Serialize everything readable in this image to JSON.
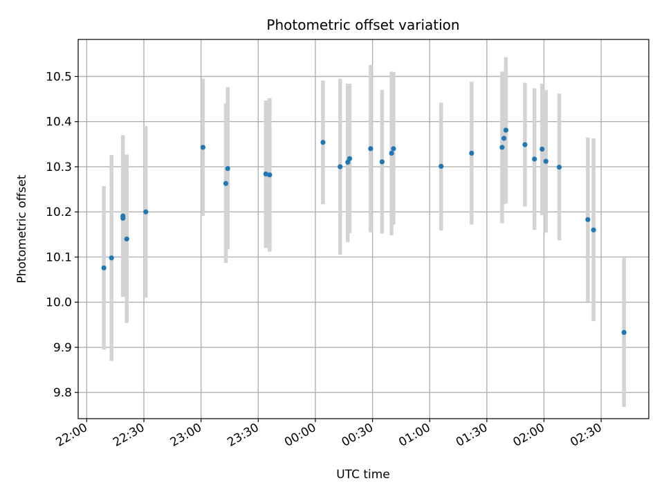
{
  "chart_data": {
    "type": "scatter",
    "title": "Photometric offset variation",
    "xlabel": "UTC time",
    "ylabel": "Photometric offset",
    "x_ticks": [
      "22:00",
      "22:30",
      "23:00",
      "23:30",
      "00:00",
      "00:30",
      "01:00",
      "01:30",
      "02:00",
      "02:30"
    ],
    "x_tick_minutes": [
      0,
      30,
      60,
      90,
      120,
      150,
      180,
      210,
      240,
      270
    ],
    "x_axis_unit": "minutes after 22:00 UTC",
    "xlim": [
      -4.5,
      295
    ],
    "y_ticks": [
      "9.8",
      "9.9",
      "10.0",
      "10.1",
      "10.2",
      "10.3",
      "10.4",
      "10.5"
    ],
    "ylim": [
      9.742,
      10.582
    ],
    "grid": true,
    "marker_color": "#1f77b4",
    "errorbar_color": "#d3d3d3",
    "points": [
      {
        "t": "22:09",
        "y": 10.076,
        "ylo": 9.895,
        "yhi": 10.257
      },
      {
        "t": "22:13",
        "y": 10.098,
        "ylo": 9.87,
        "yhi": 10.326
      },
      {
        "t": "22:19",
        "y": 10.191,
        "ylo": 10.012,
        "yhi": 10.37
      },
      {
        "t": "22:19",
        "y": 10.186,
        "ylo": 10.012,
        "yhi": 10.362
      },
      {
        "t": "22:21",
        "y": 10.14,
        "ylo": 9.954,
        "yhi": 10.327
      },
      {
        "t": "22:31",
        "y": 10.2,
        "ylo": 10.01,
        "yhi": 10.39
      },
      {
        "t": "23:01",
        "y": 10.343,
        "ylo": 10.191,
        "yhi": 10.495
      },
      {
        "t": "23:13",
        "y": 10.263,
        "ylo": 10.087,
        "yhi": 10.44
      },
      {
        "t": "23:14",
        "y": 10.296,
        "ylo": 10.117,
        "yhi": 10.476
      },
      {
        "t": "23:34",
        "y": 10.284,
        "ylo": 10.12,
        "yhi": 10.447
      },
      {
        "t": "23:36",
        "y": 10.282,
        "ylo": 10.112,
        "yhi": 10.452
      },
      {
        "t": "00:04",
        "y": 10.354,
        "ylo": 10.217,
        "yhi": 10.491
      },
      {
        "t": "00:13",
        "y": 10.3,
        "ylo": 10.105,
        "yhi": 10.495
      },
      {
        "t": "00:17",
        "y": 10.31,
        "ylo": 10.133,
        "yhi": 10.484
      },
      {
        "t": "00:18",
        "y": 10.318,
        "ylo": 10.153,
        "yhi": 10.484
      },
      {
        "t": "00:29",
        "y": 10.34,
        "ylo": 10.155,
        "yhi": 10.525
      },
      {
        "t": "00:35",
        "y": 10.311,
        "ylo": 10.152,
        "yhi": 10.47
      },
      {
        "t": "00:40",
        "y": 10.33,
        "ylo": 10.148,
        "yhi": 10.511
      },
      {
        "t": "00:41",
        "y": 10.34,
        "ylo": 10.172,
        "yhi": 10.51
      },
      {
        "t": "01:06",
        "y": 10.301,
        "ylo": 10.159,
        "yhi": 10.442
      },
      {
        "t": "01:22",
        "y": 10.33,
        "ylo": 10.172,
        "yhi": 10.488
      },
      {
        "t": "01:38",
        "y": 10.343,
        "ylo": 10.175,
        "yhi": 10.511
      },
      {
        "t": "01:39",
        "y": 10.363,
        "ylo": 10.217,
        "yhi": 10.51
      },
      {
        "t": "01:40",
        "y": 10.381,
        "ylo": 10.219,
        "yhi": 10.543
      },
      {
        "t": "01:50",
        "y": 10.349,
        "ylo": 10.212,
        "yhi": 10.486
      },
      {
        "t": "01:55",
        "y": 10.317,
        "ylo": 10.16,
        "yhi": 10.474
      },
      {
        "t": "01:59",
        "y": 10.339,
        "ylo": 10.193,
        "yhi": 10.484
      },
      {
        "t": "02:01",
        "y": 10.312,
        "ylo": 10.154,
        "yhi": 10.47
      },
      {
        "t": "02:08",
        "y": 10.299,
        "ylo": 10.137,
        "yhi": 10.462
      },
      {
        "t": "02:23",
        "y": 10.183,
        "ylo": 10.001,
        "yhi": 10.365
      },
      {
        "t": "02:26",
        "y": 10.16,
        "ylo": 9.958,
        "yhi": 10.363
      },
      {
        "t": "02:42",
        "y": 9.933,
        "ylo": 9.768,
        "yhi": 10.098
      }
    ]
  }
}
